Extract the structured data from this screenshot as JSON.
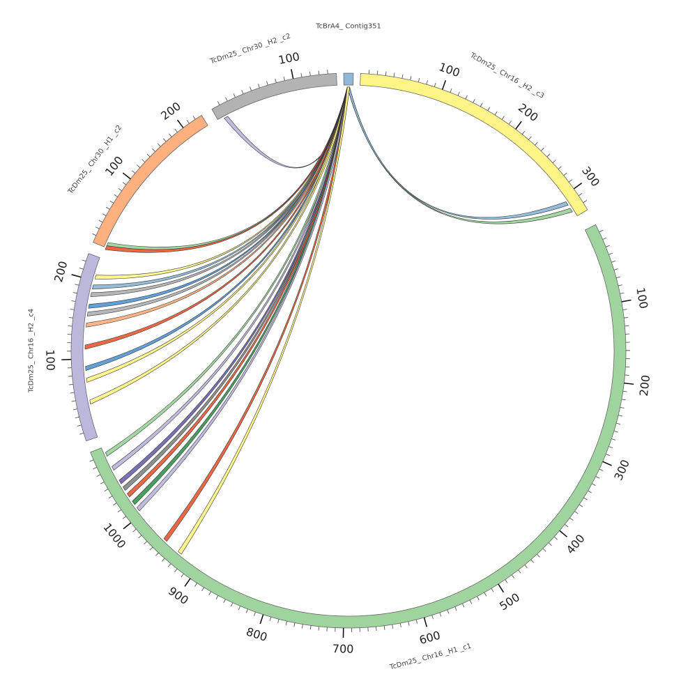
{
  "figure": {
    "type": "circos",
    "segments": [
      {
        "id": "contig351",
        "label": "TcBrA4_ Contig351",
        "color": "#8fb8d6",
        "length": 4,
        "ticks": [],
        "a0": -1.0,
        "a1": 1.0,
        "label_angle": 0
      },
      {
        "id": "chr16_h2_c3",
        "label": "TcDm25_ Chr16 _H2 _c3",
        "color": "#fff587",
        "length": 330,
        "ticks": [
          100,
          200,
          300
        ],
        "a0": 2.5,
        "a1": 59.5,
        "label_angle": 30
      },
      {
        "id": "chr16_h1_c1",
        "label": "TcDm25_ Chr16 _H1 _c1",
        "color": "#9fd49f",
        "length": 1100,
        "ticks": [
          100,
          200,
          300,
          400,
          500,
          600,
          700,
          800,
          900,
          1000
        ],
        "a0": 63.0,
        "a1": 248.5,
        "label_angle": 165
      },
      {
        "id": "chr16_h2_c4",
        "label": "TcDm25_ Chr16 _H2 _c4",
        "color": "#bcb8dc",
        "length": 230,
        "ticks": [
          100,
          200
        ],
        "a0": 251.0,
        "a1": 290.5,
        "label_angle": 270
      },
      {
        "id": "chr30_h1_c2",
        "label": "TcDm25_ Chr30 _H1 _c2",
        "color": "#ffb07f",
        "length": 230,
        "ticks": [
          100,
          200
        ],
        "a0": 293.0,
        "a1": 328.0,
        "label_angle": 307
      },
      {
        "id": "chr30_h2_c2",
        "label": "TcDm25_ Chr30 _H2 _c2",
        "color": "#b3b3b3",
        "length": 150,
        "ticks": [
          100
        ],
        "a0": 330.5,
        "a1": 357.5,
        "label_angle": 342
      }
    ],
    "links": [
      {
        "color": "#9fd49f",
        "target": "chr16_h2_c3",
        "pos": 320
      },
      {
        "color": "#8fb8d6",
        "target": "chr16_h2_c3",
        "pos": 310
      },
      {
        "color": "#bcb8dc",
        "target": "chr30_h2_c2",
        "pos": 10
      },
      {
        "color": "#9fd49f",
        "target": "chr30_h1_c2",
        "pos": 5
      },
      {
        "color": "#e8603c",
        "target": "chr30_h1_c2",
        "pos": 0
      },
      {
        "color": "#fff587",
        "target": "chr16_h2_c4",
        "pos": 205
      },
      {
        "color": "#8fb8d6",
        "target": "chr16_h2_c4",
        "pos": 192
      },
      {
        "color": "#b3b3b3",
        "target": "chr16_h2_c4",
        "pos": 182
      },
      {
        "color": "#5a9bd5",
        "target": "chr16_h2_c4",
        "pos": 167
      },
      {
        "color": "#b3b3b3",
        "target": "chr16_h2_c4",
        "pos": 157
      },
      {
        "color": "#ffb07f",
        "target": "chr16_h2_c4",
        "pos": 143
      },
      {
        "color": "#e8603c",
        "target": "chr16_h2_c4",
        "pos": 115
      },
      {
        "color": "#5a9bd5",
        "target": "chr16_h2_c4",
        "pos": 88
      },
      {
        "color": "#fff587",
        "target": "chr16_h2_c4",
        "pos": 73
      },
      {
        "color": "#fff587",
        "target": "chr16_h2_c4",
        "pos": 45
      },
      {
        "color": "#9fd49f",
        "target": "chr16_h1_c1",
        "pos": 1090
      },
      {
        "color": "#bcb8dc",
        "target": "chr16_h1_c1",
        "pos": 1070
      },
      {
        "color": "#7468b0",
        "target": "chr16_h1_c1",
        "pos": 1050
      },
      {
        "color": "#8a8a8a",
        "target": "chr16_h1_c1",
        "pos": 1040
      },
      {
        "color": "#e8603c",
        "target": "chr16_h1_c1",
        "pos": 1030
      },
      {
        "color": "#3f9a5a",
        "target": "chr16_h1_c1",
        "pos": 1018
      },
      {
        "color": "#bcb8dc",
        "target": "chr16_h1_c1",
        "pos": 1008
      },
      {
        "color": "#e8603c",
        "target": "chr16_h1_c1",
        "pos": 955
      },
      {
        "color": "#fff587",
        "target": "chr16_h1_c1",
        "pos": 930
      }
    ]
  }
}
